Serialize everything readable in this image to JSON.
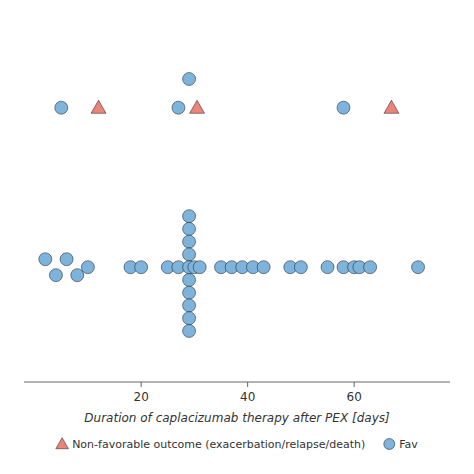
{
  "chart_data": {
    "type": "scatter",
    "xlabel": "Duration of caplacizumab therapy after PEX [days]",
    "xlim": [
      -2,
      78
    ],
    "xticks": [
      20,
      40,
      60
    ],
    "ylim": [
      -0.72,
      1.55
    ],
    "tick_labels": "x",
    "grid": false,
    "legend": "bottom",
    "series": [
      {
        "name": "Non-favorable outcome (exacerbation/relapse/death)",
        "color": "#E8847A",
        "marker": "triangle",
        "x": [
          12,
          30.5,
          67
        ],
        "values": [
          1.0,
          1.0,
          1.0
        ]
      },
      {
        "name": "Fav",
        "color": "#7EB3DC",
        "marker": "circle",
        "x": [
          5,
          27,
          29,
          58,
          2,
          4,
          6,
          8,
          10,
          18,
          20,
          25,
          27,
          29,
          29,
          29,
          29,
          29,
          29,
          29,
          29,
          29,
          29,
          30,
          31,
          35,
          37,
          39,
          41,
          43,
          48,
          50,
          55,
          58,
          60,
          61,
          63,
          72
        ],
        "values": [
          1.0,
          1.0,
          1.18,
          1.0,
          0.05,
          -0.05,
          0.05,
          -0.05,
          0.0,
          0.0,
          0.0,
          0.0,
          0.0,
          0.32,
          0.24,
          0.16,
          0.08,
          0.0,
          -0.08,
          -0.16,
          -0.24,
          -0.32,
          -0.4,
          0.0,
          0.0,
          0.0,
          0.0,
          0.0,
          0.0,
          0.0,
          0.0,
          0.0,
          0.0,
          0.0,
          0.0,
          0.0,
          0.0,
          0.0
        ]
      }
    ]
  }
}
